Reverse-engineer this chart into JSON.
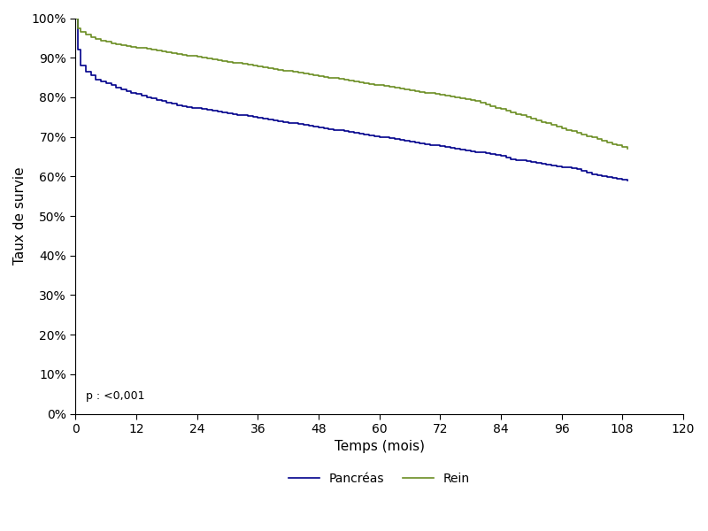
{
  "title": "",
  "xlabel": "Temps (mois)",
  "ylabel": "Taux de survie",
  "xlim": [
    0,
    120
  ],
  "ylim": [
    0,
    1.0
  ],
  "xticks": [
    0,
    12,
    24,
    36,
    48,
    60,
    72,
    84,
    96,
    108,
    120
  ],
  "yticks": [
    0.0,
    0.1,
    0.2,
    0.3,
    0.4,
    0.5,
    0.6,
    0.7,
    0.8,
    0.9,
    1.0
  ],
  "pancreas_color": "#00008B",
  "rein_color": "#6B8E23",
  "annotation": "p : <0,001",
  "legend_pancreas": "Pancréas",
  "legend_rein": "Rein",
  "pancreas_x": [
    0,
    0.5,
    1,
    2,
    3,
    4,
    5,
    6,
    7,
    8,
    9,
    10,
    11,
    12,
    13,
    14,
    15,
    16,
    17,
    18,
    19,
    20,
    21,
    22,
    23,
    24,
    25,
    26,
    27,
    28,
    29,
    30,
    31,
    32,
    33,
    34,
    35,
    36,
    37,
    38,
    39,
    40,
    41,
    42,
    43,
    44,
    45,
    46,
    47,
    48,
    49,
    50,
    51,
    52,
    53,
    54,
    55,
    56,
    57,
    58,
    59,
    60,
    61,
    62,
    63,
    64,
    65,
    66,
    67,
    68,
    69,
    70,
    71,
    72,
    73,
    74,
    75,
    76,
    77,
    78,
    79,
    80,
    81,
    82,
    83,
    84,
    85,
    86,
    87,
    88,
    89,
    90,
    91,
    92,
    93,
    94,
    95,
    96,
    97,
    98,
    99,
    100,
    101,
    102,
    103,
    104,
    105,
    106,
    107,
    108,
    109
  ],
  "pancreas_y": [
    1.0,
    0.92,
    0.88,
    0.865,
    0.855,
    0.845,
    0.84,
    0.835,
    0.83,
    0.825,
    0.82,
    0.815,
    0.812,
    0.808,
    0.804,
    0.8,
    0.797,
    0.793,
    0.79,
    0.786,
    0.783,
    0.78,
    0.778,
    0.776,
    0.774,
    0.772,
    0.77,
    0.768,
    0.766,
    0.764,
    0.762,
    0.76,
    0.758,
    0.756,
    0.754,
    0.752,
    0.75,
    0.748,
    0.746,
    0.744,
    0.742,
    0.74,
    0.738,
    0.736,
    0.734,
    0.732,
    0.73,
    0.728,
    0.726,
    0.724,
    0.722,
    0.72,
    0.718,
    0.716,
    0.714,
    0.712,
    0.71,
    0.708,
    0.706,
    0.704,
    0.702,
    0.7,
    0.698,
    0.696,
    0.694,
    0.692,
    0.69,
    0.688,
    0.686,
    0.684,
    0.682,
    0.68,
    0.678,
    0.676,
    0.674,
    0.672,
    0.67,
    0.668,
    0.666,
    0.664,
    0.662,
    0.66,
    0.658,
    0.656,
    0.654,
    0.652,
    0.648,
    0.644,
    0.642,
    0.64,
    0.638,
    0.636,
    0.634,
    0.632,
    0.63,
    0.628,
    0.626,
    0.624,
    0.622,
    0.62,
    0.618,
    0.614,
    0.61,
    0.606,
    0.602,
    0.6,
    0.598,
    0.596,
    0.594,
    0.592,
    0.59
  ],
  "rein_x": [
    0,
    0.5,
    1,
    2,
    3,
    4,
    5,
    6,
    7,
    8,
    9,
    10,
    11,
    12,
    13,
    14,
    15,
    16,
    17,
    18,
    19,
    20,
    21,
    22,
    23,
    24,
    25,
    26,
    27,
    28,
    29,
    30,
    31,
    32,
    33,
    34,
    35,
    36,
    37,
    38,
    39,
    40,
    41,
    42,
    43,
    44,
    45,
    46,
    47,
    48,
    49,
    50,
    51,
    52,
    53,
    54,
    55,
    56,
    57,
    58,
    59,
    60,
    61,
    62,
    63,
    64,
    65,
    66,
    67,
    68,
    69,
    70,
    71,
    72,
    73,
    74,
    75,
    76,
    77,
    78,
    79,
    80,
    81,
    82,
    83,
    84,
    85,
    86,
    87,
    88,
    89,
    90,
    91,
    92,
    93,
    94,
    95,
    96,
    97,
    98,
    99,
    100,
    101,
    102,
    103,
    104,
    105,
    106,
    107,
    108,
    109
  ],
  "rein_y": [
    1.0,
    0.975,
    0.965,
    0.958,
    0.952,
    0.947,
    0.943,
    0.94,
    0.937,
    0.934,
    0.932,
    0.93,
    0.928,
    0.926,
    0.924,
    0.922,
    0.92,
    0.918,
    0.916,
    0.914,
    0.912,
    0.91,
    0.908,
    0.906,
    0.904,
    0.902,
    0.9,
    0.898,
    0.896,
    0.894,
    0.892,
    0.89,
    0.888,
    0.886,
    0.884,
    0.882,
    0.88,
    0.878,
    0.876,
    0.874,
    0.872,
    0.87,
    0.868,
    0.866,
    0.864,
    0.862,
    0.86,
    0.858,
    0.856,
    0.854,
    0.852,
    0.85,
    0.848,
    0.846,
    0.844,
    0.842,
    0.84,
    0.838,
    0.836,
    0.834,
    0.832,
    0.83,
    0.828,
    0.826,
    0.824,
    0.822,
    0.82,
    0.818,
    0.816,
    0.814,
    0.812,
    0.81,
    0.808,
    0.806,
    0.804,
    0.802,
    0.8,
    0.798,
    0.796,
    0.794,
    0.79,
    0.786,
    0.782,
    0.778,
    0.774,
    0.77,
    0.766,
    0.762,
    0.758,
    0.754,
    0.75,
    0.746,
    0.742,
    0.738,
    0.734,
    0.73,
    0.726,
    0.722,
    0.718,
    0.714,
    0.71,
    0.706,
    0.702,
    0.698,
    0.694,
    0.69,
    0.686,
    0.682,
    0.678,
    0.674,
    0.67
  ]
}
